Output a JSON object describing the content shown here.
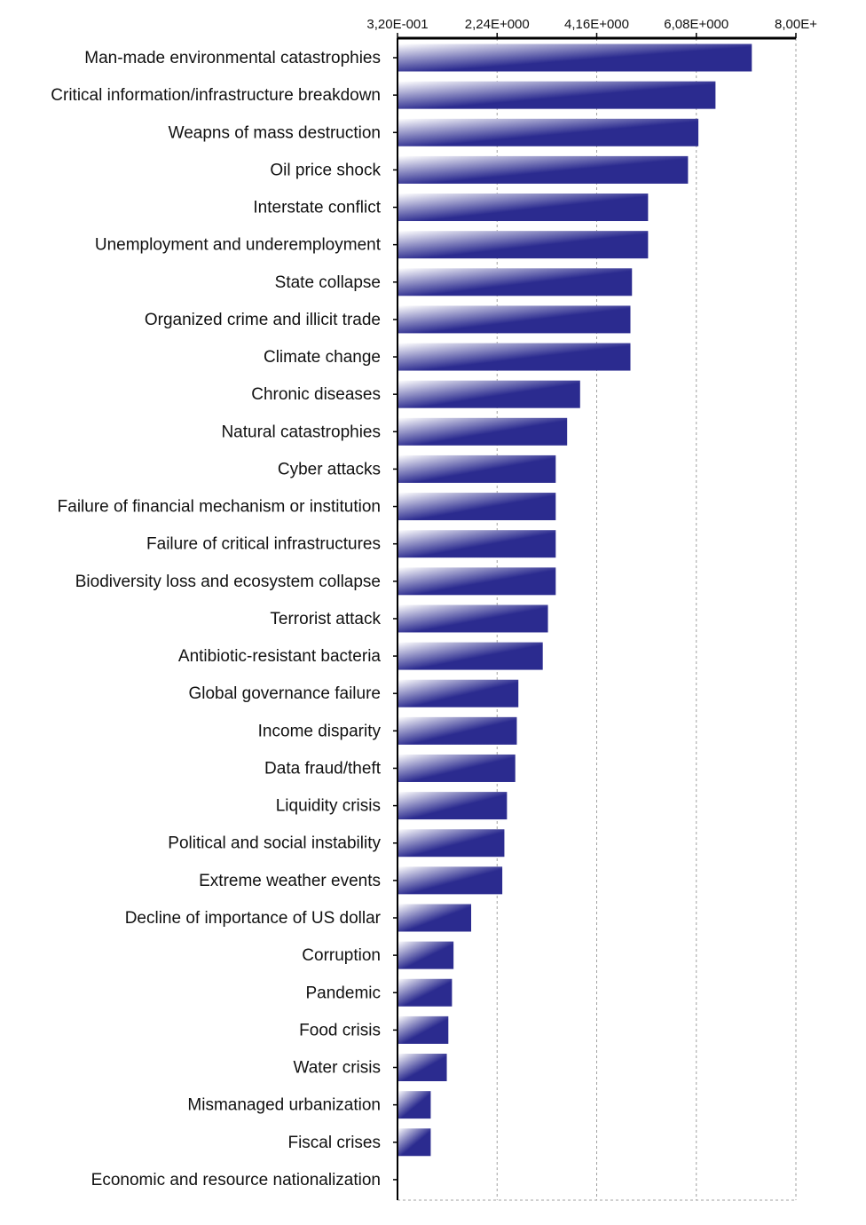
{
  "chart_data": {
    "type": "bar",
    "orientation": "horizontal",
    "title": "",
    "xlabel": "",
    "ylabel": "",
    "grid": true,
    "legend": "none",
    "bar_color": "#2b2b8f",
    "bar_color_light": "#ffffff",
    "xlim": [
      0.32,
      8.0
    ],
    "ticks": [
      0.32,
      2.24,
      4.16,
      6.08,
      8.0
    ],
    "tick_labels": [
      "3,20E-001",
      "2,24E+000",
      "4,16E+000",
      "6,08E+000",
      "8,00E+"
    ],
    "categories": [
      "Man-made environmental catastrophies",
      "Critical information/infrastructure breakdown",
      "Weapns of mass destruction",
      "Oil price shock",
      "Interstate conflict",
      "Unemployment and underemployment",
      "State collapse",
      "Organized crime and illicit trade",
      "Climate change",
      "Chronic diseases",
      "Natural catastrophies",
      "Cyber attacks",
      "Failure of financial mechanism or institution",
      "Failure of critical infrastructures",
      "Biodiversity loss and ecosystem collapse",
      "Terrorist attack",
      "Antibiotic-resistant bacteria",
      "Global governance failure",
      "Income disparity",
      "Data fraud/theft",
      "Liquidity crisis",
      "Political and social instability",
      "Extreme weather events",
      "Decline of importance of US dollar",
      "Corruption",
      "Pandemic",
      "Food crisis",
      "Water crisis",
      "Mismanaged urbanization",
      "Fiscal crises",
      "Economic and resource nationalization"
    ],
    "values": [
      7.15,
      6.45,
      6.12,
      5.92,
      5.15,
      5.15,
      4.84,
      4.81,
      4.81,
      3.84,
      3.59,
      3.37,
      3.37,
      3.37,
      3.37,
      3.22,
      3.12,
      2.65,
      2.62,
      2.59,
      2.43,
      2.38,
      2.34,
      1.74,
      1.4,
      1.37,
      1.3,
      1.27,
      0.96,
      0.96,
      0.32
    ]
  }
}
